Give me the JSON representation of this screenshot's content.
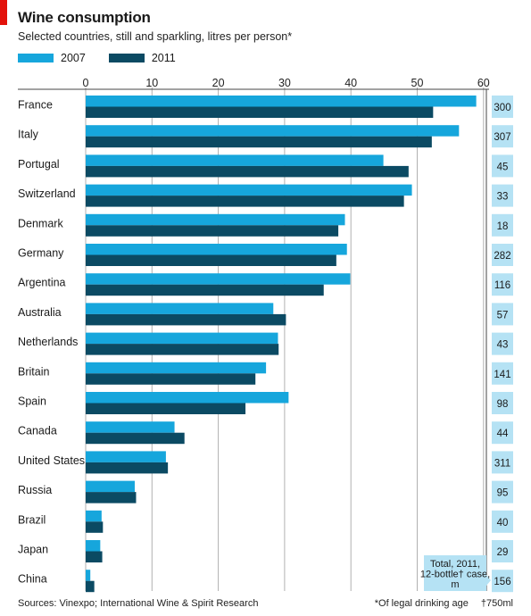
{
  "header": {
    "title": "Wine consumption",
    "subtitle": "Selected countries, still and sparkling, litres per person*"
  },
  "colors": {
    "accent_red": "#e3120b",
    "series_2007": "#16a6dc",
    "series_2011": "#0b4a63",
    "case_box": "#b5e2f4",
    "grid": "#b0b0b0"
  },
  "chart_data": {
    "type": "bar",
    "orientation": "horizontal",
    "title": "Wine consumption",
    "subtitle": "Selected countries, still and sparkling, litres per person*",
    "xlim": [
      0,
      60
    ],
    "x_ticks": [
      0,
      10,
      20,
      30,
      40,
      50,
      60
    ],
    "legend_position": "top-left",
    "grid": true,
    "categories": [
      "France",
      "Italy",
      "Portugal",
      "Switzerland",
      "Denmark",
      "Germany",
      "Argentina",
      "Australia",
      "Netherlands",
      "Britain",
      "Spain",
      "Canada",
      "United States",
      "Russia",
      "Brazil",
      "Japan",
      "China"
    ],
    "series": [
      {
        "name": "2007",
        "values": [
          58.9,
          56.3,
          44.9,
          49.2,
          39.1,
          39.4,
          39.9,
          28.3,
          29.0,
          27.2,
          30.6,
          13.4,
          12.1,
          7.4,
          2.4,
          2.2,
          0.7
        ]
      },
      {
        "name": "2011",
        "values": [
          52.4,
          52.2,
          48.7,
          48.0,
          38.1,
          37.8,
          35.9,
          30.2,
          29.1,
          25.6,
          24.1,
          14.9,
          12.4,
          7.6,
          2.6,
          2.5,
          1.3
        ]
      }
    ],
    "side_panel": {
      "label": "Total, 2011, 12-bottle† case, m",
      "values": [
        "300",
        "307",
        "45",
        "33",
        "18",
        "282",
        "116",
        "57",
        "43",
        "141",
        "98",
        "44",
        "311",
        "95",
        "40",
        "29",
        "156"
      ]
    }
  },
  "footer": {
    "source": "Sources: Vinexpo; International Wine & Spirit Research",
    "note_age": "*Of legal drinking age",
    "note_bottle": "†750ml"
  }
}
